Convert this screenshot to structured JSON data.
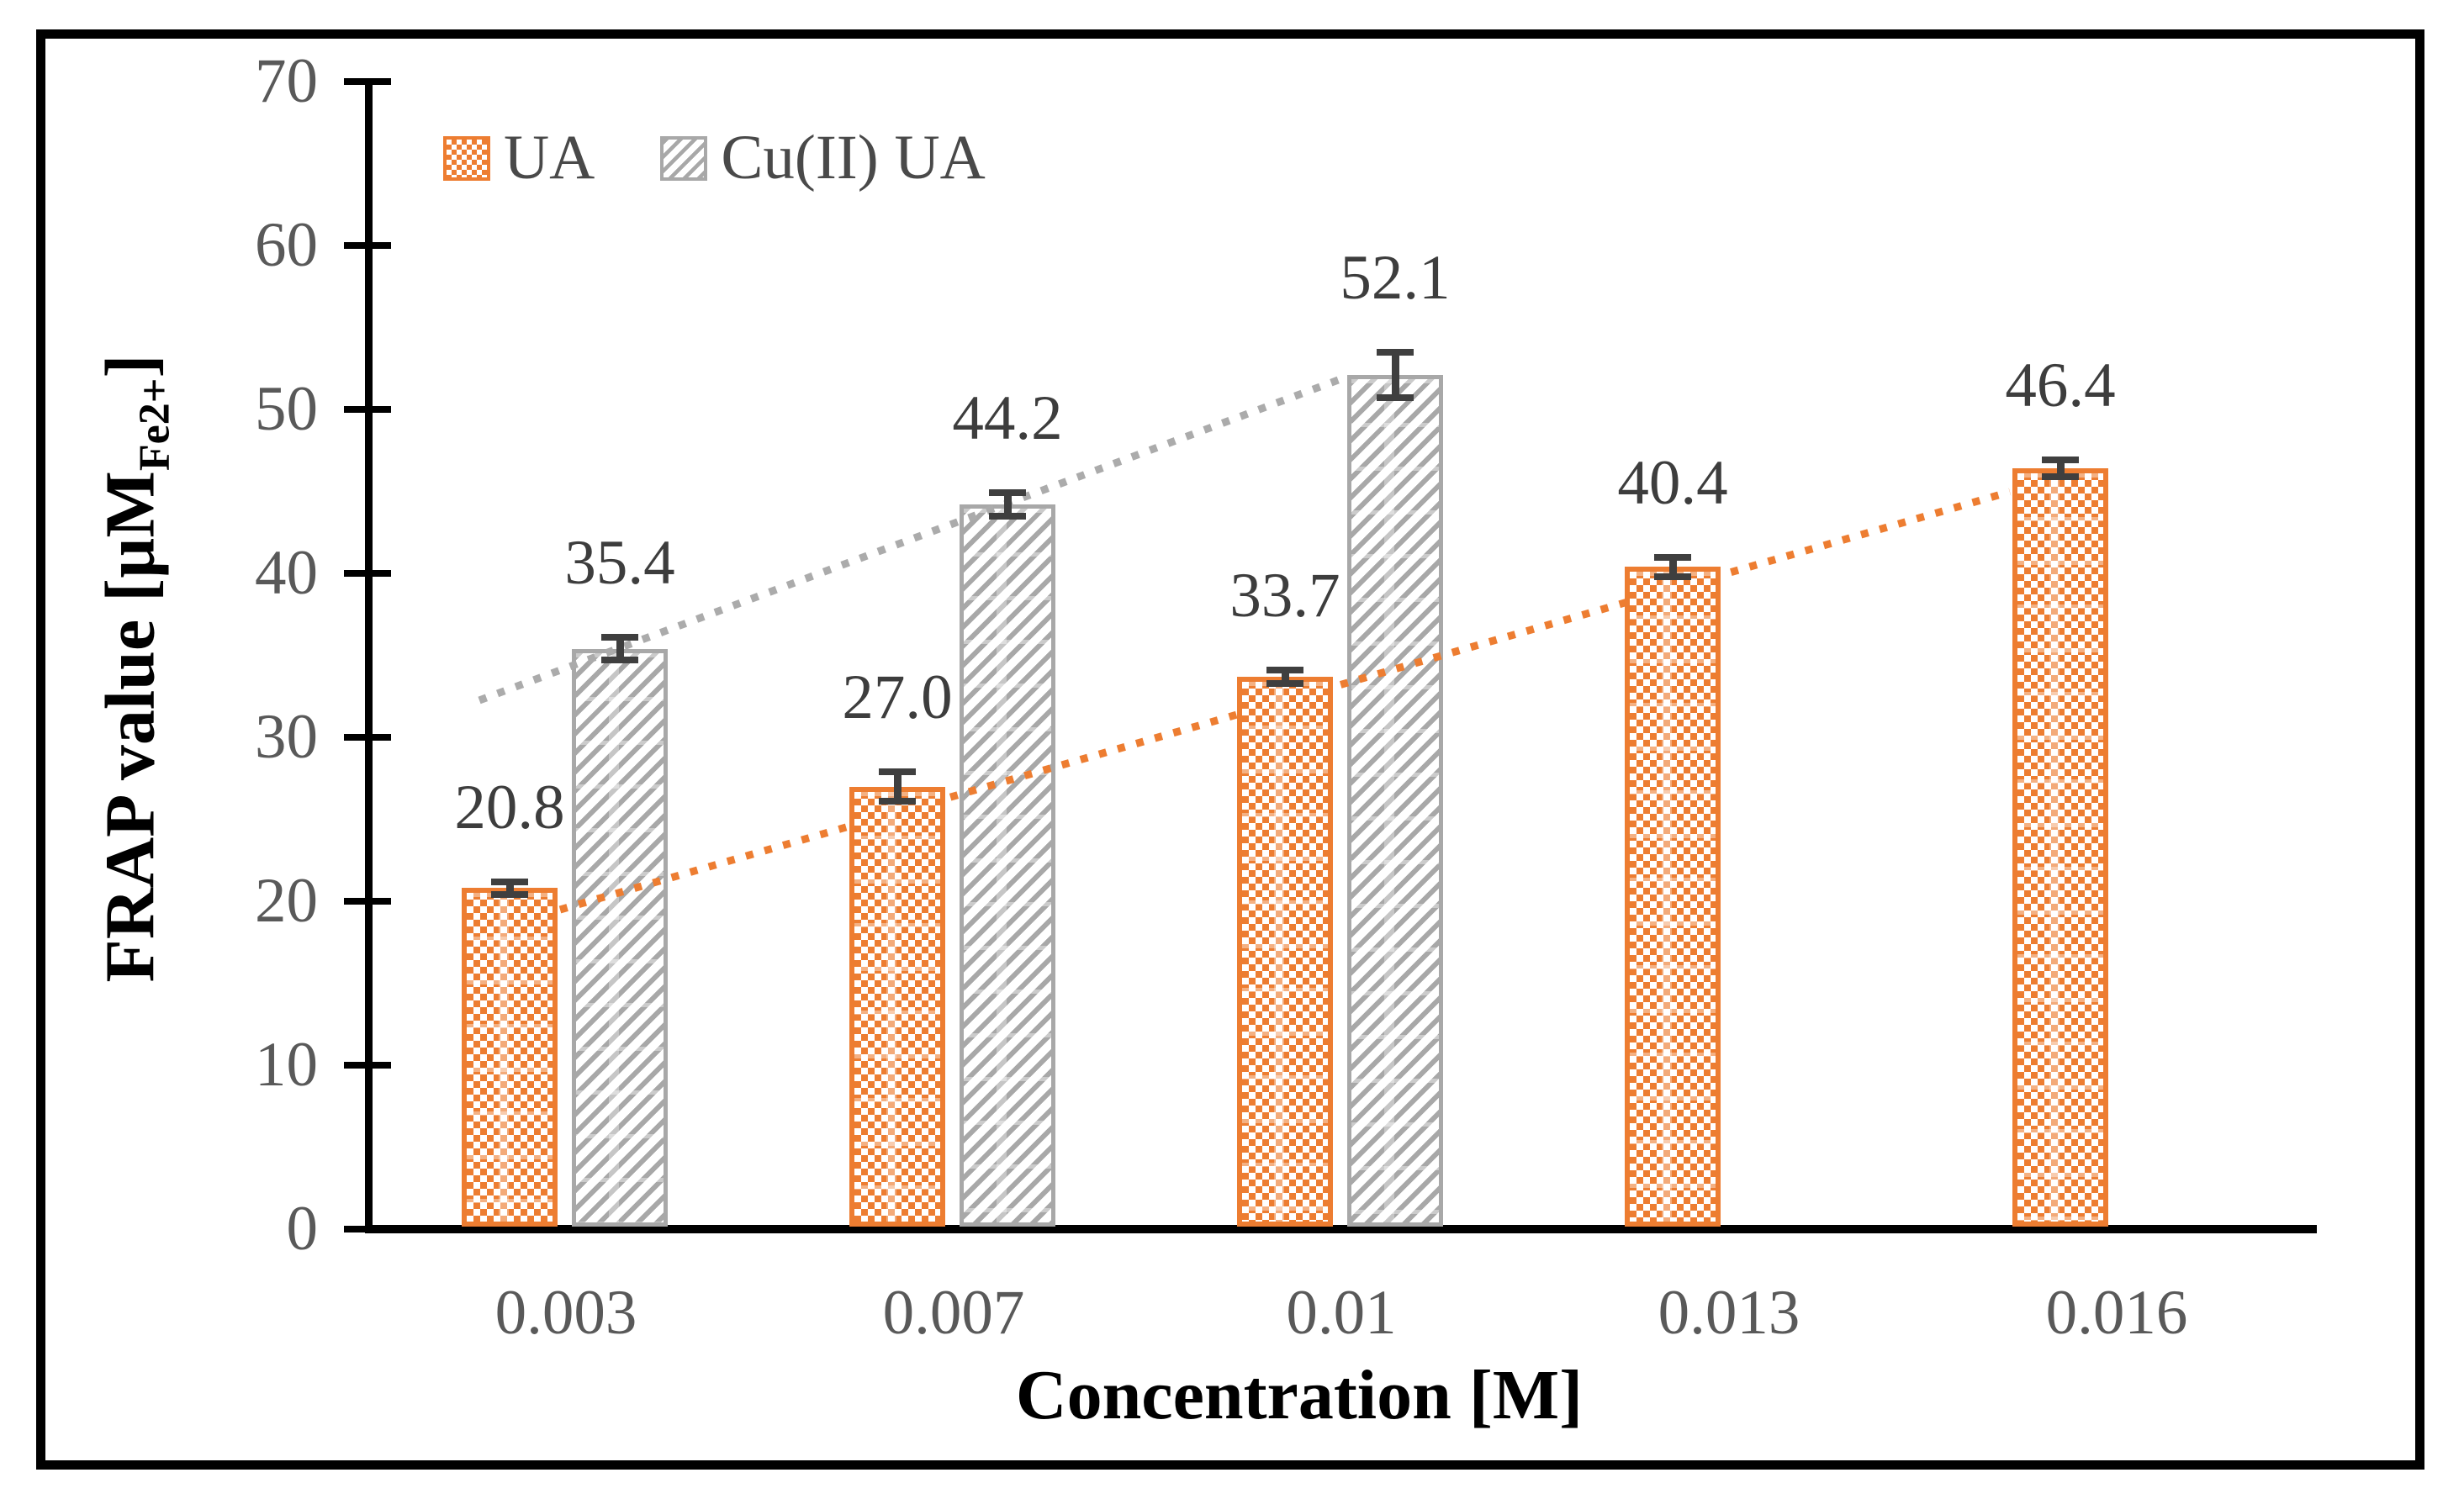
{
  "chart_data": {
    "type": "bar",
    "title": "",
    "xlabel": "Concentration [M]",
    "ylabel": "FRAP value [µM_Fe2+]",
    "ylabel_parts": {
      "main": "FRAP value [µM",
      "subscript": "Fe2+",
      "close": "]"
    },
    "categories": [
      "0.003",
      "0.007",
      "0.01",
      "0.013",
      "0.016"
    ],
    "series": [
      {
        "name": "UA",
        "values": [
          20.8,
          27.0,
          33.7,
          40.4,
          46.4
        ],
        "value_labels": [
          "20.8",
          "27.0",
          "33.7",
          "40.4",
          "46.4"
        ],
        "errors": [
          0.4,
          0.9,
          0.4,
          0.6,
          0.5
        ],
        "color": "#ed7d31",
        "pattern": "small-checker",
        "trendline": "dotted"
      },
      {
        "name": "Cu(II) UA",
        "values": [
          35.4,
          44.2,
          52.1
        ],
        "value_labels": [
          "35.4",
          "44.2",
          "52.1"
        ],
        "errors": [
          0.7,
          0.7,
          1.4
        ],
        "color": "#a8a8a8",
        "pattern": "diagonal-hatch",
        "trendline": "dotted"
      }
    ],
    "ylim": [
      0,
      70
    ],
    "ytick_step": 10,
    "yticks": [
      "0",
      "10",
      "20",
      "30",
      "40",
      "50",
      "60",
      "70"
    ],
    "grid": false,
    "legend_position": "top-left-inside",
    "colors": {
      "ua": "#ed7d31",
      "cu_ua": "#a8a8a8",
      "error_bar": "#3f3f3f",
      "tick_label": "#595959",
      "data_label": "#3d3d3d",
      "axis": "#000000",
      "trend_ua": "#ed7d31",
      "trend_cu": "#ababab"
    }
  }
}
